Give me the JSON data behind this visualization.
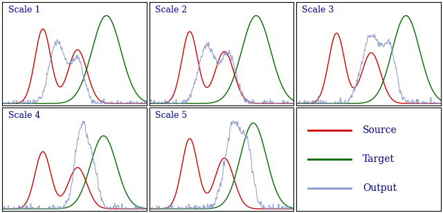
{
  "title_color": "#000080",
  "source_color": "#cc0000",
  "target_color": "#006600",
  "output_color": "#8899cc",
  "background_color": "#ffffff",
  "border_color": "#000000",
  "scales": [
    "Scale 1",
    "Scale 2",
    "Scale 3",
    "Scale 4",
    "Scale 5"
  ],
  "legend_entries": [
    "Source",
    "Target",
    "Output"
  ],
  "legend_colors": [
    "#cc0000",
    "#006600",
    "#8899cc"
  ],
  "title_fontsize": 9,
  "legend_fontsize": 10
}
